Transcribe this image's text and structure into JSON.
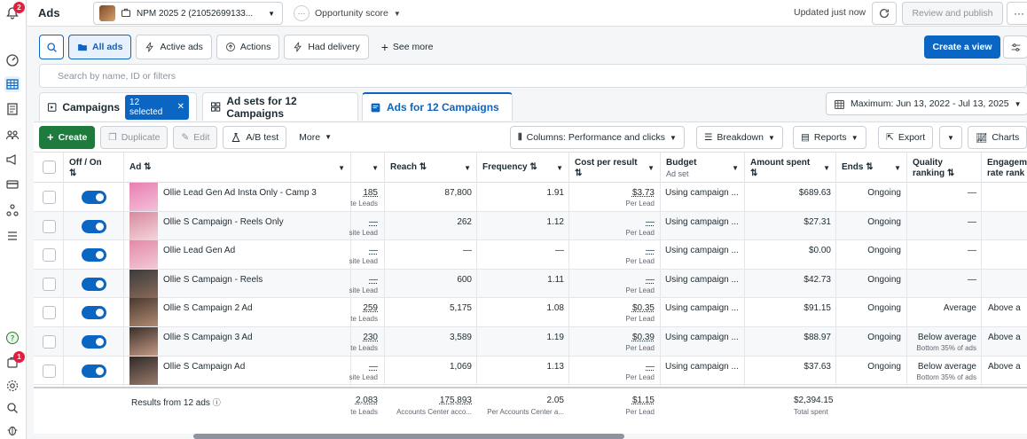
{
  "leftrail": {
    "notification_count": "2",
    "apps_badge_count": "1"
  },
  "topbar": {
    "title": "Ads",
    "account_name": "NPM 2025 2 (21052699133...",
    "objective_label": "Opportunity score",
    "updated_label": "Updated just now",
    "review_label": "Review and publish",
    "more_label": "···"
  },
  "filters": {
    "all_ads": "All ads",
    "active_ads": "Active ads",
    "actions": "Actions",
    "had_delivery": "Had delivery",
    "see_more": "See more",
    "create_view": "Create a view"
  },
  "search": {
    "placeholder": "Search by name, ID or filters"
  },
  "tabs": {
    "campaigns": "Campaigns",
    "selected_chip": "12 selected",
    "adsets": "Ad sets for 12 Campaigns",
    "ads": "Ads for 12 Campaigns"
  },
  "date_range": "Maximum: Jun 13, 2022 - Jul 13, 2025",
  "toolbar": {
    "create": "Create",
    "duplicate": "Duplicate",
    "edit": "Edit",
    "ab_test": "A/B test",
    "more": "More",
    "columns": "Columns: Performance and clicks",
    "breakdown": "Breakdown",
    "reports": "Reports",
    "export": "Export",
    "charts": "Charts"
  },
  "columns": {
    "off_on": "Off / On",
    "ad": "Ad",
    "reach": "Reach",
    "frequency": "Frequency",
    "cost_per_result": "Cost per result",
    "budget": "Budget",
    "budget_sub": "Ad set",
    "amount_spent": "Amount spent",
    "ends": "Ends",
    "quality": "Quality ranking",
    "engagement": "Engagem rate rank"
  },
  "rows": [
    {
      "name": "Ollie Lead Gen Ad Insta Only - Camp 3",
      "results": "185",
      "results_sub": "te Leads",
      "reach": "87,800",
      "frequency": "1.91",
      "cpr": "$3.73",
      "cpr_sub": "Per Lead",
      "budget": "Using campaign ...",
      "spent": "$689.63",
      "ends": "Ongoing",
      "quality": "—",
      "quality_sub": "",
      "engagement": ""
    },
    {
      "name": "Ollie S Campaign - Reels Only",
      "results": "—",
      "results_sub": "site Lead",
      "reach": "262",
      "frequency": "1.12",
      "cpr": "—",
      "cpr_sub": "Per Lead",
      "budget": "Using campaign ...",
      "spent": "$27.31",
      "ends": "Ongoing",
      "quality": "—",
      "quality_sub": "",
      "engagement": ""
    },
    {
      "name": "Ollie Lead Gen Ad",
      "results": "—",
      "results_sub": "site Lead",
      "reach": "—",
      "frequency": "—",
      "cpr": "—",
      "cpr_sub": "Per Lead",
      "budget": "Using campaign ...",
      "spent": "$0.00",
      "ends": "Ongoing",
      "quality": "—",
      "quality_sub": "",
      "engagement": ""
    },
    {
      "name": "Ollie S Campaign - Reels",
      "results": "—",
      "results_sub": "site Lead",
      "reach": "600",
      "frequency": "1.11",
      "cpr": "—",
      "cpr_sub": "Per Lead",
      "budget": "Using campaign ...",
      "spent": "$42.73",
      "ends": "Ongoing",
      "quality": "—",
      "quality_sub": "",
      "engagement": ""
    },
    {
      "name": "Ollie S Campaign 2 Ad",
      "results": "259",
      "results_sub": "te Leads",
      "reach": "5,175",
      "frequency": "1.08",
      "cpr": "$0.35",
      "cpr_sub": "Per Lead",
      "budget": "Using campaign ...",
      "spent": "$91.15",
      "ends": "Ongoing",
      "quality": "Average",
      "quality_sub": "",
      "engagement": "Above a"
    },
    {
      "name": "Ollie S Campaign 3 Ad",
      "results": "230",
      "results_sub": "te Leads",
      "reach": "3,589",
      "frequency": "1.19",
      "cpr": "$0.39",
      "cpr_sub": "Per Lead",
      "budget": "Using campaign ...",
      "spent": "$88.97",
      "ends": "Ongoing",
      "quality": "Below average",
      "quality_sub": "Bottom 35% of ads",
      "engagement": "Above a"
    },
    {
      "name": "Ollie S Campaign Ad",
      "results": "—",
      "results_sub": "site Lead",
      "reach": "1,069",
      "frequency": "1.13",
      "cpr": "—",
      "cpr_sub": "Per Lead",
      "budget": "Using campaign ...",
      "spent": "$37.63",
      "ends": "Ongoing",
      "quality": "Below average",
      "quality_sub": "Bottom 35% of ads",
      "engagement": "Above a"
    }
  ],
  "footer": {
    "label": "Results from 12 ads",
    "results": "2,083",
    "results_sub": "te Leads",
    "reach": "175,893",
    "reach_sub": "Accounts Center acco...",
    "frequency": "2.05",
    "frequency_sub": "Per Accounts Center a...",
    "cpr": "$1.15",
    "cpr_sub": "Per Lead",
    "spent": "$2,394.15",
    "spent_sub": "Total spent"
  },
  "colors": {
    "accent": "#0a66c2",
    "create_green": "#1f7a3e"
  }
}
